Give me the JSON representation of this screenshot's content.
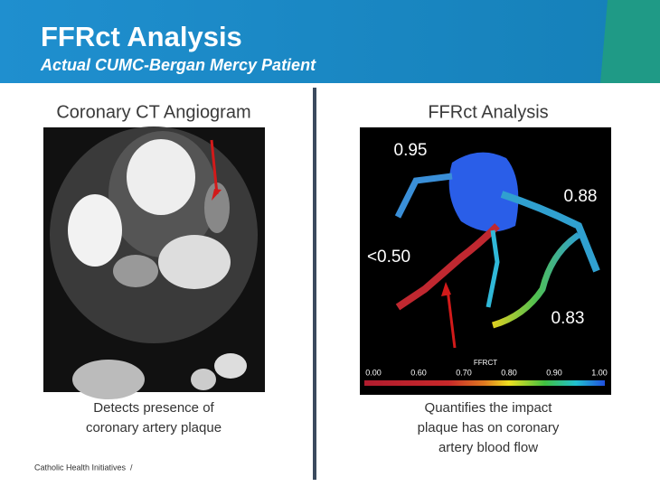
{
  "header": {
    "title": "FFRct Analysis",
    "subtitle": "Actual CUMC-Bergan Mercy Patient"
  },
  "left_panel": {
    "heading": "Coronary CT Angiogram",
    "caption": [
      "Detects presence of",
      "coronary artery plaque"
    ]
  },
  "right_panel": {
    "heading": "FFRct Analysis",
    "caption": [
      "Quantifies the impact",
      "plaque has on coronary",
      "artery blood flow"
    ],
    "image_labels": [
      "0.95",
      "0.88",
      "<0.50",
      "0.83"
    ],
    "colorbar": {
      "title": "FFRCT",
      "ticks": [
        "0.00",
        "0.60",
        "0.70",
        "0.80",
        "0.90",
        "1.00"
      ]
    }
  },
  "footer": {
    "text": "Catholic Health Initiatives  /"
  }
}
